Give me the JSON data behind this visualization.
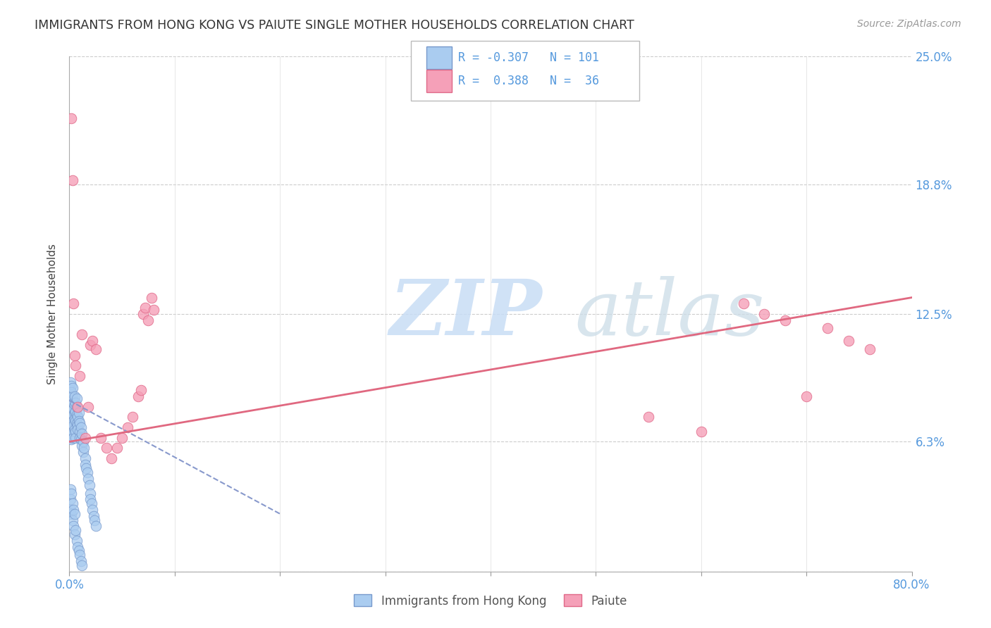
{
  "title": "IMMIGRANTS FROM HONG KONG VS PAIUTE SINGLE MOTHER HOUSEHOLDS CORRELATION CHART",
  "source": "Source: ZipAtlas.com",
  "ylabel": "Single Mother Households",
  "xlim": [
    0.0,
    0.8
  ],
  "ylim": [
    0.0,
    0.25
  ],
  "yticks": [
    0.0,
    0.063,
    0.125,
    0.188,
    0.25
  ],
  "ytick_labels": [
    "",
    "6.3%",
    "12.5%",
    "18.8%",
    "25.0%"
  ],
  "xticks": [
    0.0,
    0.1,
    0.2,
    0.3,
    0.4,
    0.5,
    0.6,
    0.7,
    0.8
  ],
  "xtick_labels": [
    "0.0%",
    "",
    "",
    "",
    "",
    "",
    "",
    "",
    "80.0%"
  ],
  "hk_R": -0.307,
  "hk_N": 101,
  "paiute_R": 0.388,
  "paiute_N": 36,
  "hk_color": "#aaccf0",
  "paiute_color": "#f5a0b8",
  "hk_edge_color": "#7799cc",
  "paiute_edge_color": "#e06888",
  "hk_line_color": "#8899cc",
  "paiute_line_color": "#e06880",
  "background_color": "#ffffff",
  "grid_color": "#cccccc",
  "tick_color": "#5599dd",
  "hk_scatter_x": [
    0.001,
    0.001,
    0.001,
    0.001,
    0.001,
    0.001,
    0.001,
    0.001,
    0.001,
    0.001,
    0.002,
    0.002,
    0.002,
    0.002,
    0.002,
    0.002,
    0.002,
    0.002,
    0.002,
    0.002,
    0.002,
    0.002,
    0.002,
    0.002,
    0.002,
    0.003,
    0.003,
    0.003,
    0.003,
    0.003,
    0.003,
    0.003,
    0.003,
    0.003,
    0.004,
    0.004,
    0.004,
    0.004,
    0.004,
    0.004,
    0.004,
    0.005,
    0.005,
    0.005,
    0.005,
    0.005,
    0.006,
    0.006,
    0.006,
    0.006,
    0.006,
    0.007,
    0.007,
    0.007,
    0.007,
    0.008,
    0.008,
    0.008,
    0.009,
    0.009,
    0.01,
    0.01,
    0.01,
    0.011,
    0.011,
    0.012,
    0.012,
    0.013,
    0.013,
    0.014,
    0.015,
    0.015,
    0.016,
    0.017,
    0.018,
    0.019,
    0.02,
    0.02,
    0.021,
    0.022,
    0.023,
    0.024,
    0.025,
    0.001,
    0.001,
    0.001,
    0.002,
    0.002,
    0.003,
    0.003,
    0.004,
    0.004,
    0.005,
    0.005,
    0.006,
    0.007,
    0.008,
    0.009,
    0.01,
    0.011,
    0.012
  ],
  "hk_scatter_y": [
    0.075,
    0.08,
    0.082,
    0.078,
    0.085,
    0.07,
    0.073,
    0.088,
    0.065,
    0.092,
    0.076,
    0.079,
    0.083,
    0.071,
    0.068,
    0.09,
    0.077,
    0.074,
    0.086,
    0.069,
    0.064,
    0.081,
    0.087,
    0.072,
    0.066,
    0.078,
    0.08,
    0.074,
    0.07,
    0.083,
    0.067,
    0.085,
    0.075,
    0.089,
    0.076,
    0.073,
    0.079,
    0.068,
    0.082,
    0.065,
    0.071,
    0.077,
    0.081,
    0.074,
    0.069,
    0.085,
    0.073,
    0.078,
    0.068,
    0.082,
    0.065,
    0.076,
    0.08,
    0.072,
    0.084,
    0.071,
    0.075,
    0.069,
    0.077,
    0.073,
    0.068,
    0.072,
    0.065,
    0.07,
    0.064,
    0.067,
    0.061,
    0.063,
    0.058,
    0.06,
    0.055,
    0.052,
    0.05,
    0.048,
    0.045,
    0.042,
    0.038,
    0.035,
    0.033,
    0.03,
    0.027,
    0.025,
    0.022,
    0.04,
    0.035,
    0.03,
    0.038,
    0.028,
    0.033,
    0.025,
    0.03,
    0.022,
    0.028,
    0.018,
    0.02,
    0.015,
    0.012,
    0.01,
    0.008,
    0.005,
    0.003
  ],
  "paiute_scatter_x": [
    0.002,
    0.003,
    0.004,
    0.005,
    0.006,
    0.008,
    0.01,
    0.012,
    0.015,
    0.018,
    0.02,
    0.022,
    0.025,
    0.03,
    0.035,
    0.04,
    0.045,
    0.05,
    0.055,
    0.06,
    0.065,
    0.068,
    0.07,
    0.072,
    0.075,
    0.078,
    0.08,
    0.55,
    0.6,
    0.64,
    0.66,
    0.68,
    0.7,
    0.72,
    0.74,
    0.76
  ],
  "paiute_scatter_y": [
    0.22,
    0.19,
    0.13,
    0.105,
    0.1,
    0.08,
    0.095,
    0.115,
    0.065,
    0.08,
    0.11,
    0.112,
    0.108,
    0.065,
    0.06,
    0.055,
    0.06,
    0.065,
    0.07,
    0.075,
    0.085,
    0.088,
    0.125,
    0.128,
    0.122,
    0.133,
    0.127,
    0.075,
    0.068,
    0.13,
    0.125,
    0.122,
    0.085,
    0.118,
    0.112,
    0.108
  ],
  "hk_line_x0": 0.0,
  "hk_line_x1": 0.2,
  "hk_line_y0": 0.083,
  "hk_line_y1": 0.028,
  "paiute_line_x0": 0.0,
  "paiute_line_x1": 0.8,
  "paiute_line_y0": 0.063,
  "paiute_line_y1": 0.133
}
